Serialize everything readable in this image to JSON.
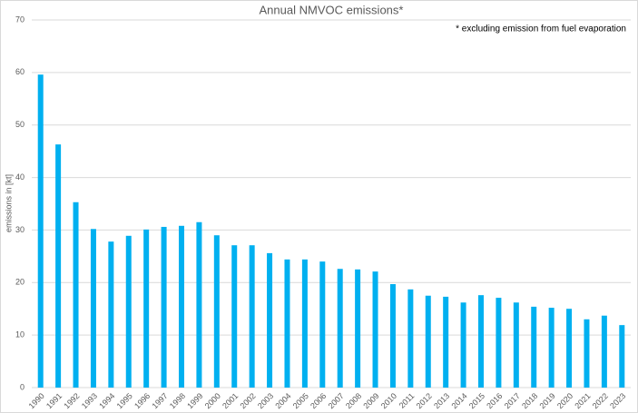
{
  "chart_data": {
    "type": "bar",
    "title": "Annual NMVOC emissions*",
    "annotation": "* excluding emission from fuel evaporation",
    "y_label": "emissions in [kt]",
    "categories": [
      "1990",
      "1991",
      "1992",
      "1993",
      "1994",
      "1995",
      "1996",
      "1997",
      "1998",
      "1999",
      "2000",
      "2001",
      "2002",
      "2003",
      "2004",
      "2005",
      "2006",
      "2007",
      "2008",
      "2009",
      "2010",
      "2011",
      "2012",
      "2013",
      "2014",
      "2015",
      "2016",
      "2017",
      "2018",
      "2019",
      "2020",
      "2021",
      "2022",
      "2023"
    ],
    "values": [
      59.6,
      46.3,
      35.3,
      30.2,
      27.8,
      28.9,
      30.1,
      30.6,
      30.8,
      31.5,
      29.0,
      27.1,
      27.1,
      25.6,
      24.4,
      24.4,
      24.0,
      22.6,
      22.5,
      22.1,
      19.7,
      18.7,
      17.5,
      17.3,
      16.2,
      17.6,
      17.1,
      16.2,
      15.4,
      15.2,
      15.0,
      13.0,
      13.7,
      11.9
    ],
    "color": "#00b0f0",
    "ylim": [
      0,
      70
    ],
    "yticks": [
      0,
      10,
      20,
      30,
      40,
      50,
      60,
      70
    ],
    "grid": true
  }
}
